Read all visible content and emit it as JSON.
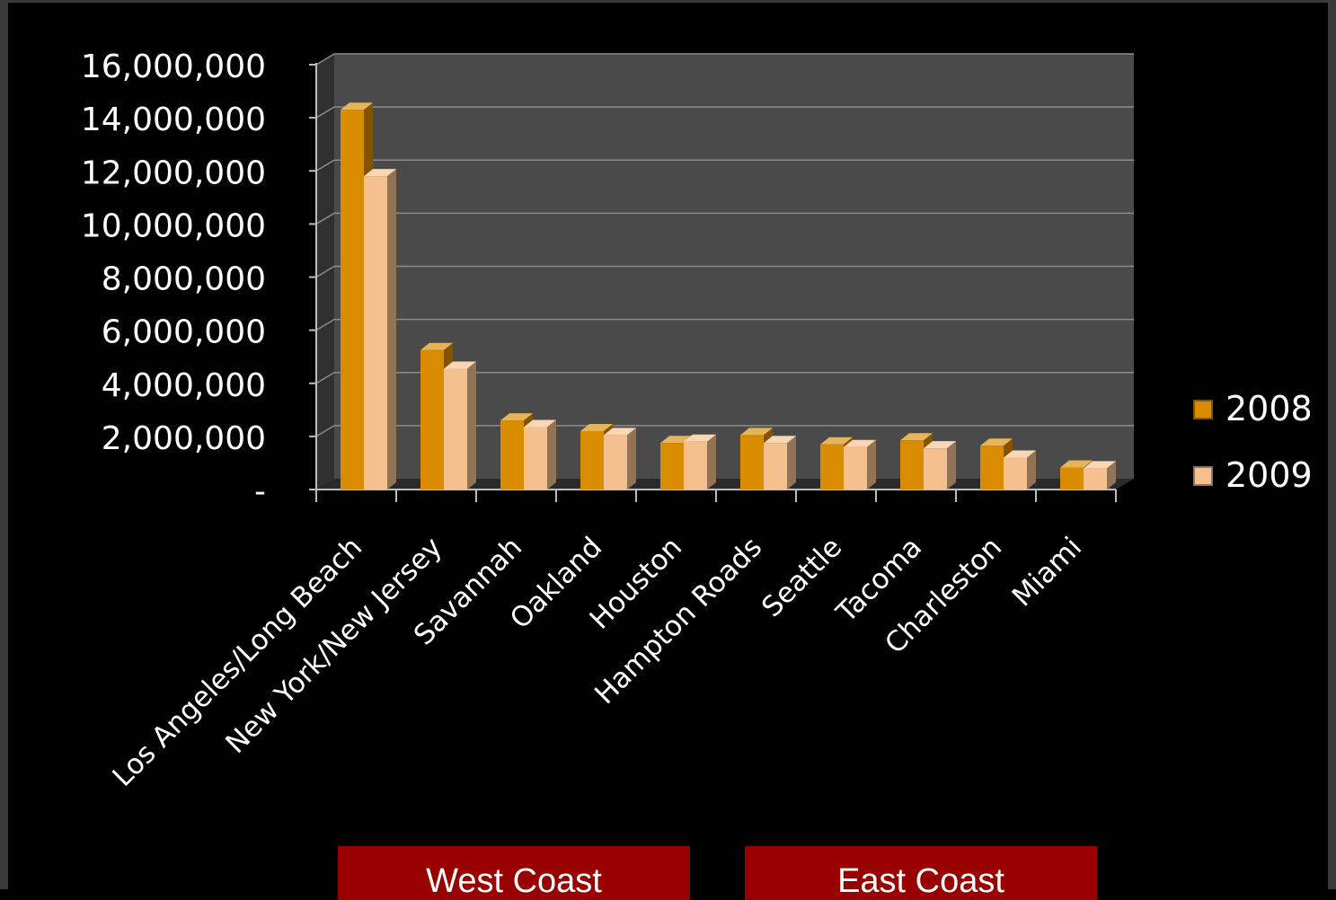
{
  "chart_data": {
    "type": "bar",
    "categories": [
      "Los Angeles/Long Beach",
      "New York/New Jersey",
      "Savannah",
      "Oakland",
      "Houston",
      "Hampton Roads",
      "Seattle",
      "Tacoma",
      "Charleston",
      "Miami"
    ],
    "series": [
      {
        "name": "2008",
        "values": [
          14300000,
          5250000,
          2600000,
          2200000,
          1750000,
          2050000,
          1700000,
          1850000,
          1650000,
          830000
        ],
        "color": "#d98c00"
      },
      {
        "name": "2009",
        "values": [
          11800000,
          4550000,
          2350000,
          2050000,
          1800000,
          1750000,
          1600000,
          1550000,
          1200000,
          800000
        ],
        "color": "#f5c08f"
      }
    ],
    "ylim": [
      0,
      16000000
    ],
    "yticks": [
      0,
      2000000,
      4000000,
      6000000,
      8000000,
      10000000,
      12000000,
      14000000,
      16000000
    ],
    "ytick_labels": [
      "-",
      "2,000,000",
      "4,000,000",
      "6,000,000",
      "8,000,000",
      "10,000,000",
      "12,000,000",
      "14,000,000",
      "16,000,000"
    ],
    "grid": true,
    "legend_position": "right",
    "style": "3d-clustered-column"
  },
  "annotations": {
    "west_coast": "West Coast",
    "east_coast": "East Coast"
  },
  "colors": {
    "background": "#000000",
    "plot_back_wall": "#4a4a4a",
    "gridline": "#8c8c8c",
    "badge": "#990000"
  }
}
